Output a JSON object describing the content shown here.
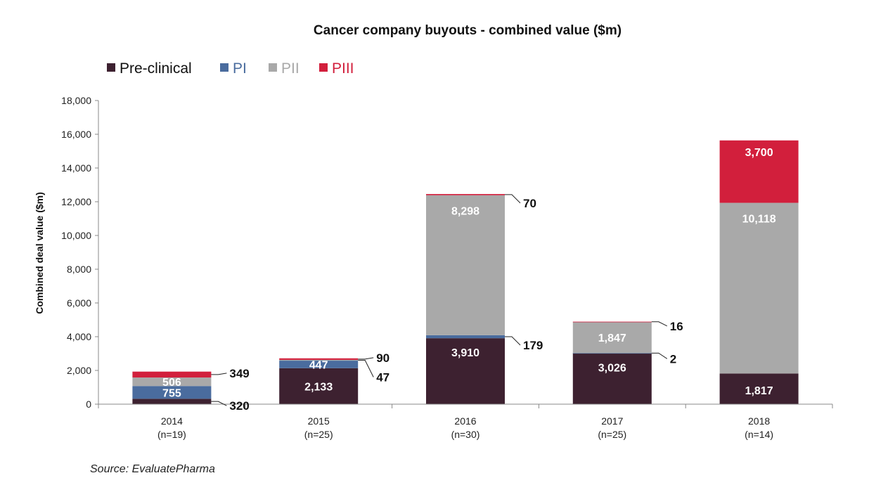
{
  "chart_data": {
    "type": "bar",
    "stacked": true,
    "title": "Cancer company buyouts - combined value ($m)",
    "ylabel": "Combined deal value ($m)",
    "xlabel": "",
    "ylim": [
      0,
      18000
    ],
    "yticks": [
      "0",
      "2,000",
      "4,000",
      "6,000",
      "8,000",
      "10,000",
      "12,000",
      "14,000",
      "16,000",
      "18,000"
    ],
    "grid": false,
    "legend_position": "top-left",
    "categories": [
      {
        "year": "2014",
        "n": "(n=19)"
      },
      {
        "year": "2015",
        "n": "(n=25)"
      },
      {
        "year": "2016",
        "n": "(n=30)"
      },
      {
        "year": "2017",
        "n": "(n=25)"
      },
      {
        "year": "2018",
        "n": "(n=14)"
      }
    ],
    "series": [
      {
        "name": "Pre-clinical",
        "color": "#3d2130",
        "values": [
          320,
          2133,
          3910,
          3026,
          1817
        ],
        "labels": [
          "320",
          "2,133",
          "3,910",
          "3,026",
          "1,817"
        ],
        "label_pos": [
          "out",
          "in",
          "in",
          "in",
          "in"
        ]
      },
      {
        "name": "PI",
        "color": "#4a6c9e",
        "values": [
          755,
          447,
          179,
          2,
          0
        ],
        "labels": [
          "755",
          "447",
          "179",
          "2",
          ""
        ],
        "label_pos": [
          "in",
          "in",
          "out",
          "out",
          "none"
        ]
      },
      {
        "name": "PII",
        "color": "#a9a9a9",
        "values": [
          506,
          47,
          8298,
          1847,
          10118
        ],
        "labels": [
          "506",
          "47",
          "8,298",
          "1,847",
          "10,118"
        ],
        "label_pos": [
          "in",
          "out",
          "in",
          "in",
          "in"
        ]
      },
      {
        "name": "PIII",
        "color": "#d21f3c",
        "values": [
          349,
          90,
          70,
          16,
          3700
        ],
        "labels": [
          "349",
          "90",
          "70",
          "16",
          "3,700"
        ],
        "label_pos": [
          "out",
          "out",
          "out",
          "out",
          "in"
        ]
      }
    ],
    "source": "Source: EvaluatePharma"
  }
}
